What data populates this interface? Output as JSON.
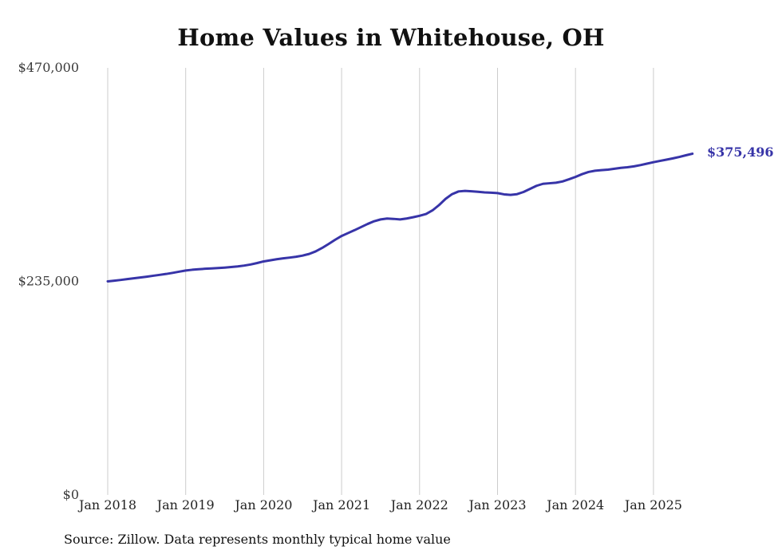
{
  "title": "Home Values in Whitehouse, OH",
  "end_label": "$375,496",
  "source_note": "Source: Zillow. Data represents monthly typical home value",
  "chart_data": {
    "type": "line",
    "title": "Home Values in Whitehouse, OH",
    "series_name": "Monthly typical home value",
    "line_color": "#3734a8",
    "grid": "vertical-only",
    "gridline_color": "#cccccc",
    "ylim": [
      0,
      470000
    ],
    "y_ticks": [
      {
        "label": "$470,000",
        "value": 470000
      },
      {
        "label": "$235,000",
        "value": 235000
      },
      {
        "label": "$0",
        "value": 0
      }
    ],
    "x_tick_labels": [
      "Jan 2018",
      "Jan 2019",
      "Jan 2020",
      "Jan 2021",
      "Jan 2022",
      "Jan 2023",
      "Jan 2024",
      "Jan 2025"
    ],
    "start_month": "2018-01",
    "end_month": "2025-07",
    "last_value_label": "$375,496",
    "values": [
      235000,
      235800,
      236600,
      237500,
      238400,
      239300,
      240200,
      241200,
      242200,
      243200,
      244400,
      245700,
      247000,
      247800,
      248400,
      248900,
      249300,
      249700,
      250200,
      250800,
      251500,
      252400,
      253600,
      255200,
      257000,
      258200,
      259400,
      260400,
      261200,
      262100,
      263400,
      265200,
      268000,
      271800,
      276200,
      280800,
      285000,
      288200,
      291400,
      294800,
      298200,
      301200,
      303200,
      304200,
      303800,
      303200,
      304200,
      305600,
      307200,
      309200,
      313200,
      319000,
      325800,
      331000,
      334000,
      334600,
      334200,
      333600,
      333000,
      332600,
      332200,
      330800,
      330200,
      331000,
      333400,
      336800,
      340200,
      342400,
      343000,
      343600,
      345000,
      347400,
      350000,
      353000,
      355400,
      356800,
      357400,
      358000,
      359000,
      360000,
      360600,
      361600,
      363000,
      364600,
      366200,
      367600,
      369000,
      370400,
      372000,
      373800,
      375496
    ]
  }
}
